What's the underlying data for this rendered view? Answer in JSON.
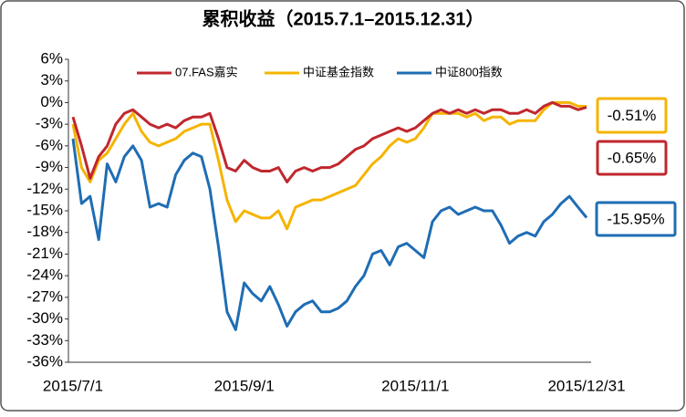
{
  "chart_data": {
    "type": "line",
    "title": "累积收益（2015.7.1–2015.12.31）",
    "categories": [
      "2015/7/1",
      null,
      null,
      null,
      null,
      null,
      null,
      null,
      null,
      null,
      null,
      null,
      null,
      null,
      null,
      null,
      null,
      null,
      null,
      null,
      "2015/9/1",
      null,
      null,
      null,
      null,
      null,
      null,
      null,
      null,
      null,
      null,
      null,
      null,
      null,
      null,
      null,
      null,
      null,
      null,
      null,
      "2015/11/1",
      null,
      null,
      null,
      null,
      null,
      null,
      null,
      null,
      null,
      null,
      null,
      null,
      null,
      null,
      null,
      null,
      null,
      null,
      null,
      "2015/12/31"
    ],
    "series": [
      {
        "name": "07.FAS嘉实",
        "color": "#c0272d",
        "values": [
          -2,
          -6,
          -10.5,
          -7.5,
          -6,
          -3,
          -1.5,
          -1,
          -2,
          -3,
          -3.5,
          -3,
          -3.5,
          -2.5,
          -2,
          -2,
          -1.5,
          -5,
          -9,
          -9.5,
          -8,
          -9,
          -9.5,
          -9.5,
          -9,
          -11,
          -9.5,
          -9,
          -9.5,
          -9,
          -9,
          -8.5,
          -7.5,
          -6.5,
          -6,
          -5,
          -4.5,
          -4,
          -3.5,
          -4,
          -3.5,
          -2.5,
          -1.5,
          -1,
          -1.5,
          -1,
          -1.5,
          -1,
          -1.5,
          -1,
          -1,
          -1.5,
          -1.5,
          -1,
          -1.5,
          -0.5,
          0,
          -0.5,
          -0.5,
          -1,
          -0.65
        ]
      },
      {
        "name": "中证基金指数",
        "color": "#f5b400",
        "values": [
          -3,
          -9,
          -11,
          -8,
          -7,
          -5,
          -3,
          -1.5,
          -4,
          -5.5,
          -6,
          -5.5,
          -5,
          -4,
          -3.5,
          -3,
          -3,
          -8,
          -13.5,
          -16.5,
          -15,
          -15.5,
          -16,
          -16,
          -15,
          -17.5,
          -14.5,
          -14,
          -13.5,
          -13.5,
          -13,
          -12.5,
          -12,
          -11.5,
          -10,
          -8.5,
          -7.5,
          -6,
          -5,
          -5.5,
          -5,
          -3.5,
          -1.5,
          -1.5,
          -1.5,
          -1.5,
          -2,
          -1.5,
          -2.5,
          -2,
          -2,
          -3,
          -2.5,
          -2.5,
          -2.5,
          -1,
          0,
          0,
          0,
          -0.5,
          -0.51
        ]
      },
      {
        "name": "中证800指数",
        "color": "#1f6db4",
        "values": [
          -5,
          -14,
          -13,
          -19,
          -8.5,
          -11,
          -7.5,
          -6,
          -8,
          -14.5,
          -14,
          -14.5,
          -10,
          -8,
          -7,
          -7.5,
          -12,
          -20,
          -29,
          -31.5,
          -25,
          -26.5,
          -27.5,
          -25.5,
          -28,
          -31,
          -29,
          -28,
          -27.5,
          -29,
          -29,
          -28.5,
          -27.5,
          -25.5,
          -24,
          -21,
          -20.5,
          -22.5,
          -20,
          -19.5,
          -20.5,
          -21.5,
          -16.5,
          -15,
          -14.5,
          -15.5,
          -15,
          -14.5,
          -15,
          -15,
          -17,
          -19.5,
          -18.5,
          -18,
          -18.5,
          -16.5,
          -15.5,
          -14,
          -13,
          -14.5,
          -15.95
        ]
      }
    ],
    "ylim": [
      -36,
      6
    ],
    "yticks": [
      {
        "value": 6,
        "label": "6%"
      },
      {
        "value": 3,
        "label": "3%"
      },
      {
        "value": 0,
        "label": "0%"
      },
      {
        "value": -3,
        "label": "-3%"
      },
      {
        "value": -6,
        "label": "-6%"
      },
      {
        "value": -9,
        "label": "-9%"
      },
      {
        "value": -12,
        "label": "-12%"
      },
      {
        "value": -15,
        "label": "-15%"
      },
      {
        "value": -18,
        "label": "-18%"
      },
      {
        "value": -21,
        "label": "-21%"
      },
      {
        "value": -24,
        "label": "-24%"
      },
      {
        "value": -27,
        "label": "-27%"
      },
      {
        "value": -30,
        "label": "-30%"
      },
      {
        "value": -33,
        "label": "-33%"
      },
      {
        "value": -36,
        "label": "-36%"
      }
    ],
    "grid": false,
    "legend": "top",
    "annotations": [
      {
        "text": "-0.51%",
        "color": "#f5b400"
      },
      {
        "text": "-0.65%",
        "color": "#c0272d"
      },
      {
        "text": "-15.95%",
        "color": "#1f6db4"
      }
    ]
  }
}
